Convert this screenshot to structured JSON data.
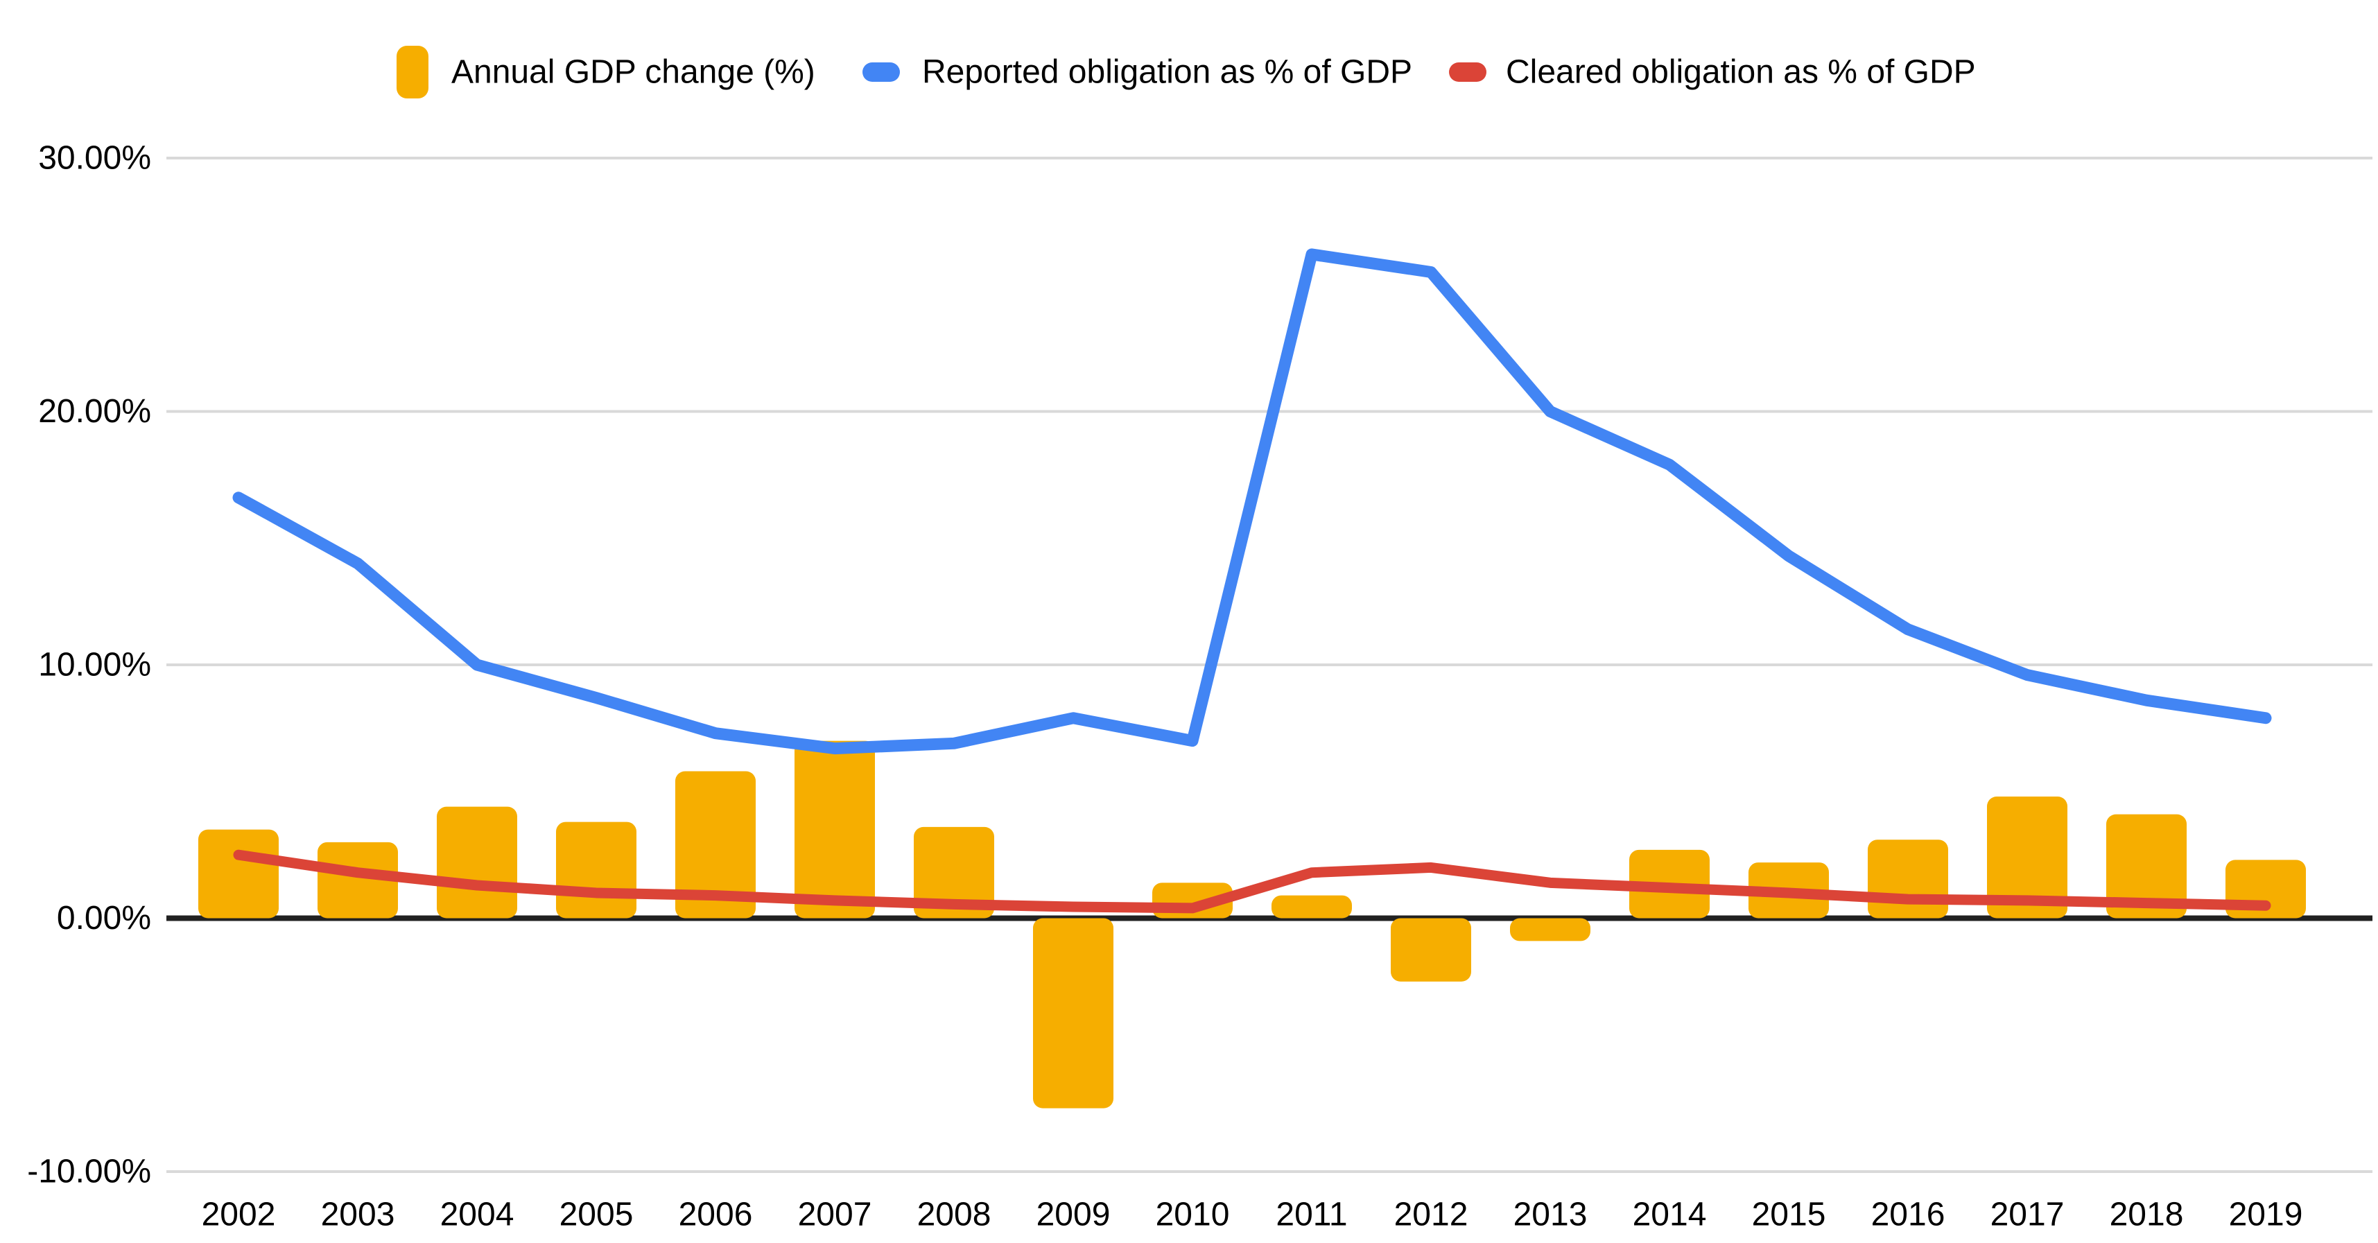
{
  "chart_data": {
    "type": "combo-bar-line",
    "title": "",
    "categories": [
      "2002",
      "2003",
      "2004",
      "2005",
      "2006",
      "2007",
      "2008",
      "2009",
      "2010",
      "2011",
      "2012",
      "2013",
      "2014",
      "2015",
      "2016",
      "2017",
      "2018",
      "2019"
    ],
    "series": [
      {
        "name": "Annual GDP change (%)",
        "type": "bar",
        "swatch": "bar",
        "color": "#F6AE00",
        "values": [
          3.5,
          3.0,
          4.4,
          3.8,
          5.8,
          7.0,
          3.6,
          -7.5,
          1.4,
          0.9,
          -2.5,
          -0.9,
          2.7,
          2.2,
          3.1,
          4.8,
          4.1,
          2.3
        ]
      },
      {
        "name": "Reported obligation as % of GDP",
        "type": "line",
        "swatch": "dash",
        "color": "#4285F4",
        "values": [
          16.6,
          14.0,
          10.0,
          8.7,
          7.3,
          6.7,
          6.9,
          7.9,
          7.0,
          26.2,
          25.5,
          20.0,
          17.9,
          14.3,
          11.4,
          9.6,
          8.6,
          7.9
        ]
      },
      {
        "name": "Cleared obligation as % of GDP",
        "type": "line",
        "swatch": "dash",
        "color": "#DB4437",
        "values": [
          2.5,
          1.8,
          1.3,
          1.0,
          0.9,
          0.7,
          0.55,
          0.45,
          0.4,
          1.8,
          2.0,
          1.4,
          1.2,
          1.0,
          0.75,
          0.7,
          0.6,
          0.5
        ]
      }
    ],
    "y_axis": {
      "min": -10,
      "max": 30,
      "tick_values": [
        30,
        20,
        10,
        0,
        -10
      ],
      "tick_labels": [
        "30.00%",
        "20.00%",
        "10.00%",
        "0.00%",
        "-10.00%"
      ]
    },
    "x_axis": {
      "tick_labels": [
        "2002",
        "2003",
        "2004",
        "2005",
        "2006",
        "2007",
        "2008",
        "2009",
        "2010",
        "2011",
        "2012",
        "2013",
        "2014",
        "2015",
        "2016",
        "2017",
        "2018",
        "2019"
      ]
    },
    "grid": true,
    "legend_position": "top",
    "ylim": [
      -10,
      30
    ]
  },
  "colors": {
    "background": "#ffffff",
    "gridline": "#d9d9d9",
    "zero_axis": "#212121",
    "text": "#000000"
  }
}
